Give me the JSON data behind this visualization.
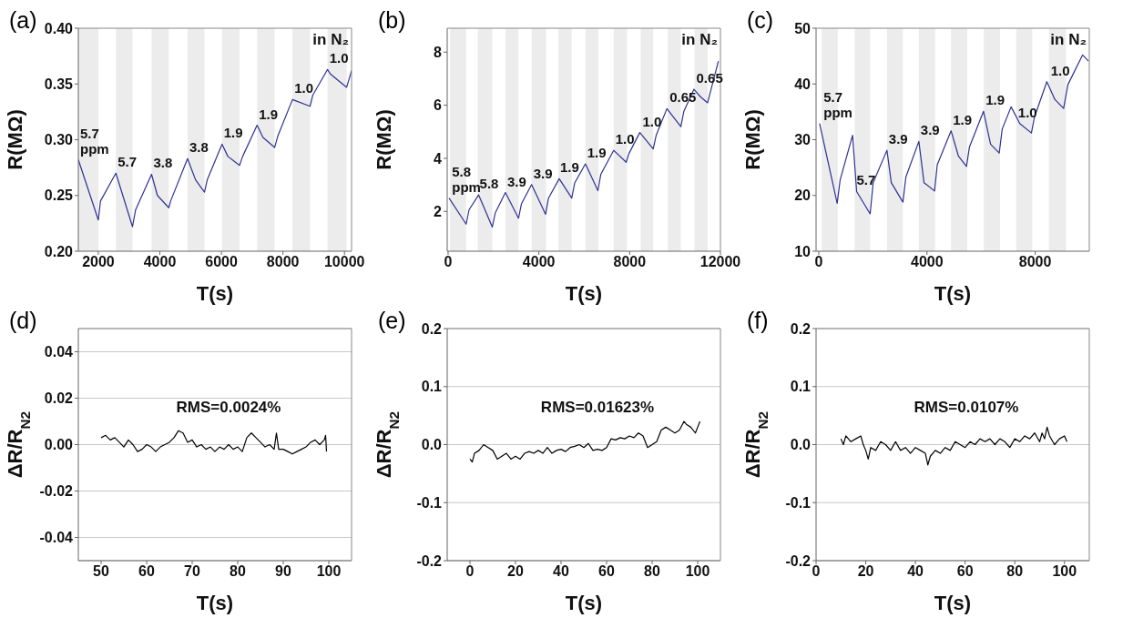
{
  "chart_data": [
    {
      "type": "line",
      "title": "(a)",
      "xlabel": "T(s)",
      "ylabel": "R(MΩ)",
      "line_style": "solid",
      "xlim": [
        1350,
        10230
      ],
      "ylim": [
        0.2,
        0.4
      ],
      "xticks": [
        2000,
        4000,
        6000,
        8000,
        10000
      ],
      "yticks": [
        {
          "value": 0.2,
          "label": "0.20"
        },
        {
          "value": 0.25,
          "label": "0.25"
        },
        {
          "value": 0.3,
          "label": "0.30"
        },
        {
          "value": 0.35,
          "label": "0.35"
        },
        {
          "value": 0.4,
          "label": "0.40"
        }
      ],
      "x": [
        1350,
        2000,
        2070,
        2570,
        3110,
        3210,
        3730,
        3920,
        4290,
        4350,
        4900,
        5160,
        5450,
        5540,
        6020,
        6210,
        6590,
        6690,
        7160,
        7350,
        7730,
        7830,
        8310,
        8880,
        8970,
        9450,
        9540,
        10070,
        10230
      ],
      "series": [
        {
          "color": "#2e3192",
          "values": [
            0.282,
            0.228,
            0.245,
            0.27,
            0.222,
            0.237,
            0.269,
            0.25,
            0.239,
            0.245,
            0.283,
            0.264,
            0.253,
            0.264,
            0.296,
            0.285,
            0.277,
            0.285,
            0.313,
            0.302,
            0.293,
            0.303,
            0.336,
            0.33,
            0.34,
            0.363,
            0.359,
            0.347,
            0.362
          ]
        }
      ],
      "bands": [
        {
          "axis": "x",
          "from": 1350,
          "to": 2000,
          "color": "#ececec"
        },
        {
          "axis": "x",
          "from": 2570,
          "to": 3110,
          "color": "#ececec"
        },
        {
          "axis": "x",
          "from": 3730,
          "to": 4290,
          "color": "#ececec"
        },
        {
          "axis": "x",
          "from": 4900,
          "to": 5450,
          "color": "#ececec"
        },
        {
          "axis": "x",
          "from": 6020,
          "to": 6590,
          "color": "#ececec"
        },
        {
          "axis": "x",
          "from": 7160,
          "to": 7730,
          "color": "#ececec"
        },
        {
          "axis": "x",
          "from": 8310,
          "to": 8880,
          "color": "#ececec"
        },
        {
          "axis": "x",
          "from": 9450,
          "to": 10070,
          "color": "#ececec"
        }
      ],
      "annotations": [
        "in N₂",
        "5.7 ppm",
        "5.7",
        "3.8",
        "3.8",
        "1.9",
        "1.9",
        "1.0",
        "1.0"
      ]
    },
    {
      "type": "line",
      "title": "(b)",
      "xlabel": "T(s)",
      "ylabel": "R(MΩ)",
      "line_style": "solid",
      "xlim": [
        -40,
        12000
      ],
      "ylim": [
        0.5,
        8.9
      ],
      "xticks": [
        0,
        4000,
        8000,
        12000
      ],
      "yticks": [
        2,
        4,
        6,
        8
      ],
      "x": [
        40,
        795,
        923,
        1346,
        1949,
        2077,
        2525,
        3102,
        3230,
        3679,
        4295,
        4423,
        4897,
        5448,
        5577,
        6051,
        6602,
        6730,
        7295,
        7846,
        7974,
        8448,
        9038,
        9167,
        9641,
        10256,
        10385,
        10833,
        11115,
        11435,
        11910
      ],
      "series": [
        {
          "color": "#2e3192",
          "values": [
            2.5,
            1.52,
            2.06,
            2.62,
            1.41,
            1.94,
            2.71,
            1.74,
            2.28,
            3.01,
            1.89,
            2.5,
            3.23,
            2.5,
            3.07,
            3.79,
            2.78,
            3.4,
            4.3,
            3.85,
            4.19,
            4.97,
            4.35,
            4.86,
            5.87,
            5.19,
            5.76,
            6.6,
            6.32,
            6.09,
            7.66
          ]
        }
      ],
      "bands": [
        {
          "axis": "x",
          "from": 90,
          "to": 795,
          "color": "#ececec"
        },
        {
          "axis": "x",
          "from": 1308,
          "to": 1949,
          "color": "#ececec"
        },
        {
          "axis": "x",
          "from": 2525,
          "to": 3102,
          "color": "#ececec"
        },
        {
          "axis": "x",
          "from": 3679,
          "to": 4320,
          "color": "#ececec"
        },
        {
          "axis": "x",
          "from": 4858,
          "to": 5448,
          "color": "#ececec"
        },
        {
          "axis": "x",
          "from": 6051,
          "to": 6628,
          "color": "#ececec"
        },
        {
          "axis": "x",
          "from": 7295,
          "to": 7885,
          "color": "#ececec"
        },
        {
          "axis": "x",
          "from": 8487,
          "to": 9038,
          "color": "#ececec"
        },
        {
          "axis": "x",
          "from": 9679,
          "to": 10256,
          "color": "#ececec"
        },
        {
          "axis": "x",
          "from": 10858,
          "to": 11435,
          "color": "#ececec"
        }
      ],
      "annotations": [
        "in N₂",
        "5.8 ppm",
        "5.8",
        "3.9",
        "3.9",
        "1.9",
        "1.9",
        "1.0",
        "1.0",
        "0.65",
        "0.65"
      ]
    },
    {
      "type": "line",
      "title": "(c)",
      "xlabel": "T(s)",
      "ylabel": "R(MΩ)",
      "line_style": "solid",
      "xlim": [
        -100,
        10000
      ],
      "ylim": [
        10,
        50
      ],
      "xticks": [
        0,
        4000,
        8000
      ],
      "yticks": [
        10,
        20,
        30,
        40,
        50
      ],
      "x": [
        30,
        680,
        790,
        1250,
        1400,
        1900,
        2010,
        2520,
        2680,
        3110,
        3220,
        3700,
        3890,
        4280,
        4380,
        4890,
        5160,
        5460,
        5570,
        6090,
        6350,
        6670,
        6780,
        7110,
        7430,
        7860,
        7970,
        8430,
        8730,
        9050,
        9210,
        9750,
        9970
      ],
      "series": [
        {
          "color": "#2e3192",
          "values": [
            32.9,
            18.6,
            22.8,
            30.8,
            20.7,
            16.7,
            22.3,
            28.1,
            22.3,
            18.8,
            23.3,
            29.7,
            22.3,
            20.8,
            25.5,
            31.6,
            27.1,
            25.2,
            28.7,
            35.1,
            29.2,
            27.6,
            31.9,
            35.9,
            32.9,
            31.2,
            34,
            40.4,
            37.2,
            35.6,
            39.9,
            45.2,
            44.1
          ]
        }
      ],
      "bands": [
        {
          "axis": "x",
          "from": 110,
          "to": 700,
          "color": "#ececec"
        },
        {
          "axis": "x",
          "from": 1330,
          "to": 1900,
          "color": "#ececec"
        },
        {
          "axis": "x",
          "from": 2520,
          "to": 3110,
          "color": "#ececec"
        },
        {
          "axis": "x",
          "from": 3700,
          "to": 4300,
          "color": "#ececec"
        },
        {
          "axis": "x",
          "from": 4890,
          "to": 5490,
          "color": "#ececec"
        },
        {
          "axis": "x",
          "from": 6100,
          "to": 6700,
          "color": "#ececec"
        },
        {
          "axis": "x",
          "from": 7300,
          "to": 7890,
          "color": "#ececec"
        },
        {
          "axis": "x",
          "from": 8510,
          "to": 9140,
          "color": "#ececec"
        }
      ],
      "annotations": [
        "in N₂",
        "5.7 ppm",
        "5.7",
        "3.9",
        "3.9",
        "1.9",
        "1.9",
        "1.0",
        "1.0"
      ]
    },
    {
      "type": "line",
      "title": "(d)",
      "xlabel": "T(s)",
      "ylabel": "ΔR/R$_{N2}$",
      "line_style": "solid",
      "grid": "y",
      "xlim": [
        45,
        105
      ],
      "ylim": [
        -0.05,
        0.05
      ],
      "xticks": [
        50,
        60,
        70,
        80,
        90,
        100
      ],
      "yticks": [
        {
          "value": -0.04,
          "label": "-0.04"
        },
        {
          "value": -0.02,
          "label": "-0.02"
        },
        {
          "value": 0,
          "label": "0.00"
        },
        {
          "value": 0.02,
          "label": "0.02"
        },
        {
          "value": 0.04,
          "label": "0.04"
        }
      ],
      "x": [
        50,
        51,
        52,
        53,
        54,
        55,
        56,
        57,
        58,
        59,
        60,
        61,
        62,
        63,
        64,
        65,
        66,
        67,
        68,
        69,
        70,
        71,
        72,
        73,
        74,
        75,
        76,
        77,
        78,
        79,
        80,
        81,
        82,
        83,
        84,
        85,
        86,
        87,
        88,
        88.5,
        89,
        90,
        91,
        92,
        93,
        94,
        95,
        96,
        97,
        98,
        99,
        99.3,
        99.5
      ],
      "series": [
        {
          "color": "#000000",
          "values": [
            0.003,
            0.004,
            0.002,
            0.003,
            0.001,
            -0.001,
            0.002,
            0,
            -0.003,
            -0.002,
            0,
            -0.001,
            -0.003,
            -0.001,
            0,
            0.001,
            0.003,
            0.006,
            0.005,
            0.001,
            0.002,
            -0.001,
            0,
            -0.002,
            -0.001,
            -0.003,
            -0.001,
            -0.002,
            0,
            -0.002,
            -0.001,
            -0.003,
            0.003,
            0.005,
            0.003,
            0.001,
            -0.001,
            0,
            -0.002,
            0.005,
            -0.002,
            -0.002,
            -0.003,
            -0.004,
            -0.003,
            -0.002,
            -0.001,
            0.001,
            0.002,
            0,
            0.002,
            0.004,
            -0.003
          ]
        }
      ],
      "annotations": [
        "RMS=0.0024%"
      ]
    },
    {
      "type": "line",
      "title": "(e)",
      "xlabel": "T(s)",
      "ylabel": "ΔR/R$_{N2}$",
      "line_style": "solid",
      "grid": "y",
      "xlim": [
        -10,
        110
      ],
      "ylim": [
        -0.2,
        0.2
      ],
      "xticks": [
        0,
        20,
        40,
        60,
        80,
        100
      ],
      "yticks": [
        -0.2,
        -0.1,
        {
          "value": 0,
          "label": "0.0"
        },
        0.1,
        0.2
      ],
      "x": [
        0,
        1,
        2,
        4,
        6,
        8,
        10,
        12,
        14,
        16,
        18,
        20,
        22,
        24,
        26,
        28,
        30,
        32,
        34,
        36,
        38,
        40,
        42,
        44,
        46,
        48,
        50,
        52,
        54,
        56,
        58,
        60,
        62,
        64,
        66,
        68,
        70,
        72,
        74,
        76,
        78,
        80,
        82,
        84,
        86,
        88,
        90,
        92,
        94,
        95,
        97,
        99,
        100,
        101
      ],
      "series": [
        {
          "color": "#000000",
          "values": [
            -0.025,
            -0.03,
            -0.015,
            -0.01,
            0,
            -0.005,
            -0.01,
            -0.025,
            -0.02,
            -0.015,
            -0.025,
            -0.02,
            -0.025,
            -0.015,
            -0.012,
            -0.015,
            -0.01,
            -0.015,
            -0.005,
            -0.015,
            -0.01,
            -0.008,
            -0.012,
            -0.005,
            -0.003,
            0,
            -0.005,
            0.002,
            -0.01,
            -0.008,
            -0.01,
            -0.005,
            0.01,
            0.008,
            0.012,
            0.01,
            0.015,
            0.012,
            0.02,
            0.015,
            -0.005,
            0,
            0.005,
            0.025,
            0.03,
            0.025,
            0.02,
            0.025,
            0.04,
            0.035,
            0.03,
            0.02,
            0.03,
            0.04
          ]
        }
      ],
      "annotations": [
        "RMS=0.01623%"
      ]
    },
    {
      "type": "line",
      "title": "(f)",
      "xlabel": "T(s)",
      "ylabel": "ΔR/R$_{N2}$",
      "line_style": "solid",
      "grid": "y",
      "xlim": [
        0,
        110
      ],
      "ylim": [
        -0.2,
        0.2
      ],
      "xticks": [
        0,
        20,
        40,
        60,
        80,
        100
      ],
      "yticks": [
        -0.2,
        -0.1,
        {
          "value": 0,
          "label": "0.0"
        },
        0.1,
        0.2
      ],
      "x": [
        10,
        11,
        12,
        14,
        16,
        18,
        19,
        20,
        21,
        22,
        24,
        26,
        28,
        30,
        32,
        34,
        36,
        38,
        40,
        42,
        44,
        45,
        46,
        48,
        50,
        52,
        54,
        56,
        58,
        60,
        62,
        64,
        66,
        68,
        70,
        72,
        74,
        76,
        78,
        80,
        82,
        84,
        86,
        88,
        90,
        91,
        92,
        93,
        94,
        96,
        98,
        100,
        101
      ],
      "series": [
        {
          "color": "#000000",
          "values": [
            0.01,
            0,
            0.015,
            0.005,
            0.01,
            0.015,
            0,
            -0.01,
            -0.025,
            -0.005,
            -0.01,
            0.005,
            0,
            -0.01,
            0.005,
            -0.01,
            -0.005,
            -0.015,
            -0.005,
            -0.01,
            -0.015,
            -0.035,
            -0.02,
            -0.01,
            -0.015,
            -0.005,
            -0.01,
            0.005,
            0,
            -0.005,
            0.005,
            0,
            0.01,
            0.005,
            0.01,
            0,
            0.01,
            0.005,
            -0.005,
            0.01,
            0.005,
            0.015,
            0.01,
            0.02,
            0.005,
            0.02,
            0.01,
            0.03,
            0.015,
            0,
            0.01,
            0.015,
            0.005
          ]
        }
      ],
      "annotations": [
        "RMS=0.0107%"
      ]
    }
  ]
}
